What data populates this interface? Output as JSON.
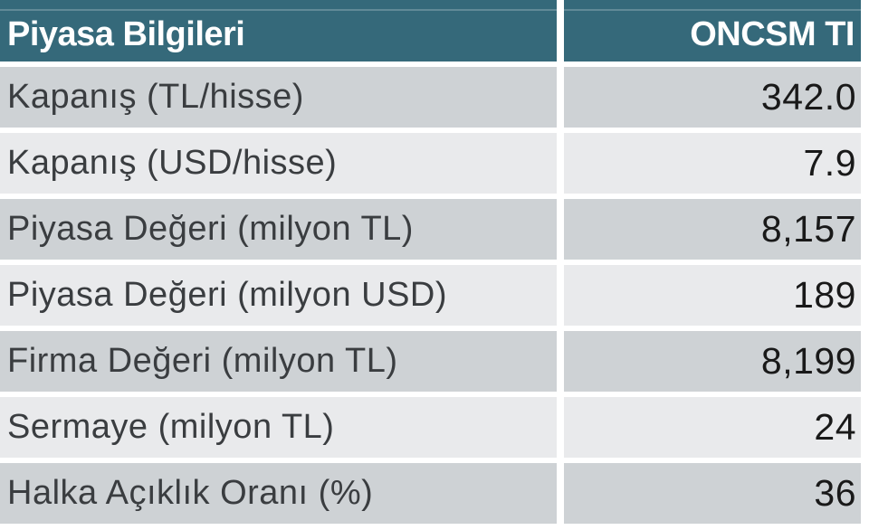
{
  "table": {
    "header": {
      "title": "Piyasa Bilgileri",
      "ticker": "ONCSM TI"
    },
    "rows": [
      {
        "label": "Kapanış (TL/hisse)",
        "value": "342.0"
      },
      {
        "label": "Kapanış (USD/hisse)",
        "value": "7.9"
      },
      {
        "label": "Piyasa Değeri (milyon TL)",
        "value": "8,157"
      },
      {
        "label": "Piyasa Değeri (milyon USD)",
        "value": "189"
      },
      {
        "label": "Firma Değeri (milyon TL)",
        "value": "8,199"
      },
      {
        "label": "Sermaye (milyon TL)",
        "value": "24"
      },
      {
        "label": "Halka Açıklık Oranı (%)",
        "value": "36"
      }
    ],
    "colors": {
      "header_bg": "#35697A",
      "header_text": "#FFFFFF",
      "row_dark_bg": "#CED2D5",
      "row_light_bg": "#E9EAEC",
      "label_text": "#3A3D40",
      "value_text": "#191919"
    }
  },
  "chart_data": {
    "type": "table",
    "title": "Piyasa Bilgileri",
    "columns": [
      "Piyasa Bilgileri",
      "ONCSM TI"
    ],
    "rows": [
      [
        "Kapanış (TL/hisse)",
        "342.0"
      ],
      [
        "Kapanış (USD/hisse)",
        "7.9"
      ],
      [
        "Piyasa Değeri (milyon TL)",
        "8,157"
      ],
      [
        "Piyasa Değeri (milyon USD)",
        "189"
      ],
      [
        "Firma Değeri (milyon TL)",
        "8,199"
      ],
      [
        "Sermaye (milyon TL)",
        "24"
      ],
      [
        "Halka Açıklık Oranı (%)",
        "36"
      ]
    ],
    "values_numeric": [
      342.0,
      7.9,
      8157,
      189,
      8199,
      24,
      36
    ],
    "layout": {
      "value_alignment": "right",
      "alternating_rows": true
    }
  }
}
